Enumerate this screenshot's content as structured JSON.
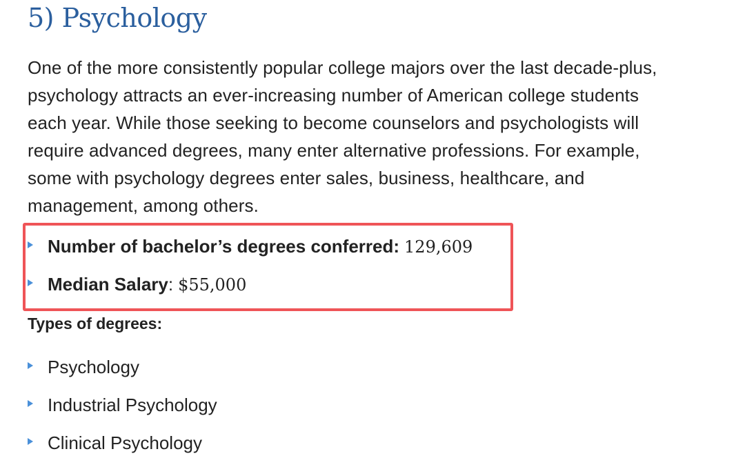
{
  "section": {
    "title": "5) Psychology",
    "paragraph_lines": [
      "One of the more consistently popular college majors over the last decade-plus,",
      "psychology attracts an ever-increasing number of American college students",
      "each year. While those seeking to become counselors and psychologists will",
      "require advanced degrees, many enter alternative professions. For example,",
      "some with psychology degrees enter sales, business, healthcare, and",
      "management, among others."
    ],
    "stats": [
      {
        "label": "Number of bachelor’s degrees conferred:",
        "value": "129,609"
      },
      {
        "label": "Median Salary",
        "suffix": ":",
        "value": "$55,000"
      }
    ],
    "types_heading": "Types of degrees:",
    "degree_types": [
      "Psychology",
      "Industrial Psychology",
      "Clinical Psychology"
    ]
  },
  "colors": {
    "title": "#2b5f9e",
    "highlight_box": "#ef5457",
    "bullet": "#4a90d9"
  }
}
